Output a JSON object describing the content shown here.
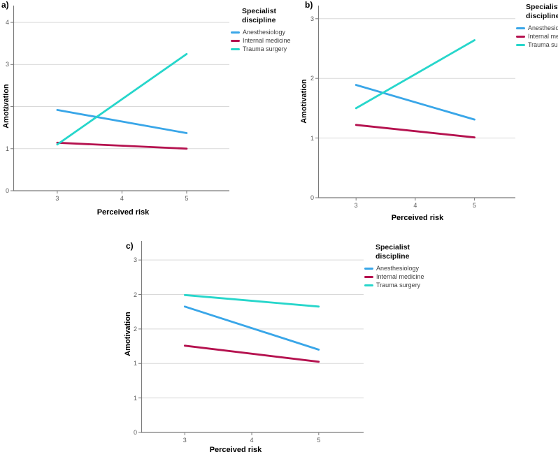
{
  "figure": {
    "background": "#FFFFFF"
  },
  "chart_data": [
    {
      "id": "a",
      "type": "line",
      "panel_label": "a)",
      "xlabel": "Perceived risk",
      "ylabel": "Amotivation",
      "legend_title_lines": [
        "Specialist",
        "discipline"
      ],
      "legend_position": "outside-top-right",
      "grid": true,
      "x": [
        3,
        5
      ],
      "xticks": [
        3,
        4,
        5
      ],
      "yticks": [
        {
          "value": 0,
          "label": "0"
        },
        {
          "value": 1,
          "label": "1"
        },
        {
          "value": 2,
          "label": "2"
        },
        {
          "value": 3,
          "label": "3"
        },
        {
          "value": 4,
          "label": "4"
        }
      ],
      "xlim": [
        2.32,
        5.66
      ],
      "ylim": [
        0,
        4.4
      ],
      "series": [
        {
          "name": "Anesthesiology",
          "color": "#39A6E8",
          "values": [
            1.92,
            1.37
          ]
        },
        {
          "name": "Internal medicine",
          "color": "#B5124F",
          "values": [
            1.14,
            1.0
          ]
        },
        {
          "name": "Trauma surgery",
          "color": "#27D6CB",
          "values": [
            1.1,
            3.25
          ]
        }
      ]
    },
    {
      "id": "b",
      "type": "line",
      "panel_label": "b)",
      "xlabel": "Perceived risk",
      "ylabel": "Amotivation",
      "legend_title_lines": [
        "Specialist",
        "discipline"
      ],
      "legend_position": "outside-top-right",
      "grid": true,
      "x": [
        3,
        5
      ],
      "xticks": [
        3,
        4,
        5
      ],
      "yticks": [
        {
          "value": 0,
          "label": "0"
        },
        {
          "value": 1,
          "label": "1"
        },
        {
          "value": 2,
          "label": "2"
        },
        {
          "value": 3,
          "label": "3"
        }
      ],
      "xlim": [
        2.36,
        5.69
      ],
      "ylim": [
        0,
        3.22
      ],
      "series": [
        {
          "name": "Anesthesiology",
          "color": "#39A6E8",
          "values": [
            1.89,
            1.31
          ]
        },
        {
          "name": "Internal medicine",
          "color": "#B5124F",
          "values": [
            1.22,
            1.01
          ]
        },
        {
          "name": "Trauma surgery",
          "color": "#27D6CB",
          "values": [
            1.5,
            2.64
          ]
        }
      ]
    },
    {
      "id": "c",
      "type": "line",
      "panel_label": "c)",
      "xlabel": "Perceived risk",
      "ylabel": "Amotivation",
      "legend_title_lines": [
        "Specialist",
        "discipline"
      ],
      "legend_position": "outside-top-right",
      "grid": true,
      "x": [
        3,
        5
      ],
      "xticks": [
        3,
        4,
        5
      ],
      "yticks": [
        {
          "value": 0,
          "label": "0"
        },
        {
          "value": 0.6,
          "label": "1"
        },
        {
          "value": 1.2,
          "label": "1"
        },
        {
          "value": 1.8,
          "label": "2"
        },
        {
          "value": 2.4,
          "label": "2"
        },
        {
          "value": 3,
          "label": "3"
        }
      ],
      "xlim": [
        2.35,
        5.67
      ],
      "ylim": [
        0,
        3.33
      ],
      "series": [
        {
          "name": "Anesthesiology",
          "color": "#39A6E8",
          "values": [
            2.19,
            1.44
          ]
        },
        {
          "name": "Internal medicine",
          "color": "#B5124F",
          "values": [
            1.51,
            1.23
          ]
        },
        {
          "name": "Trauma surgery",
          "color": "#27D6CB",
          "values": [
            2.39,
            2.19
          ]
        }
      ]
    }
  ]
}
